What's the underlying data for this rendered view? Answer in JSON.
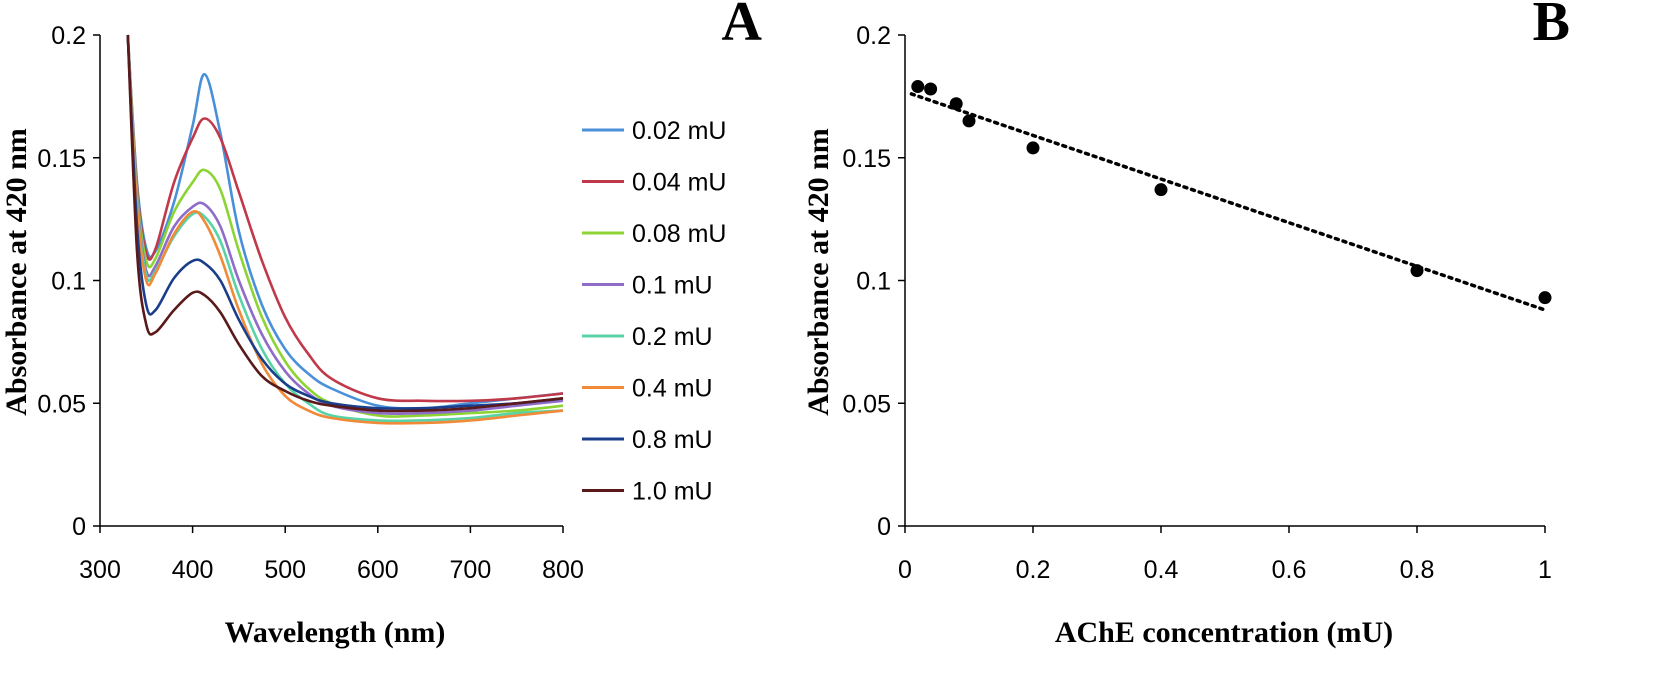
{
  "chart_data": [
    {
      "panel_label": "A",
      "type": "line",
      "xlabel": "Wavelength (nm)",
      "ylabel": "Absorbance at 420 nm",
      "xlim": [
        300,
        800
      ],
      "ylim": [
        0,
        0.2
      ],
      "x_ticks": [
        "300",
        "400",
        "500",
        "600",
        "700",
        "800"
      ],
      "y_ticks": [
        "0",
        "0.05",
        "0.1",
        "0.15",
        "0.2"
      ],
      "grid": false,
      "legend_position": "right",
      "x": [
        330,
        340,
        350,
        360,
        380,
        400,
        413,
        430,
        450,
        475,
        500,
        525,
        550,
        600,
        650,
        700,
        750,
        800
      ],
      "series": [
        {
          "name": "0.02 mU",
          "color": "#4a90d9",
          "values": [
            0.2,
            0.14,
            0.113,
            0.112,
            0.132,
            0.163,
            0.184,
            0.16,
            0.12,
            0.09,
            0.072,
            0.062,
            0.056,
            0.049,
            0.048,
            0.05,
            0.052,
            0.054
          ]
        },
        {
          "name": "0.04 mU",
          "color": "#c0394a",
          "values": [
            0.2,
            0.138,
            0.111,
            0.113,
            0.14,
            0.158,
            0.166,
            0.158,
            0.136,
            0.108,
            0.085,
            0.07,
            0.06,
            0.052,
            0.051,
            0.051,
            0.052,
            0.054
          ]
        },
        {
          "name": "0.08 mU",
          "color": "#8cd434",
          "values": [
            0.2,
            0.136,
            0.108,
            0.109,
            0.128,
            0.14,
            0.145,
            0.137,
            0.112,
            0.085,
            0.067,
            0.056,
            0.05,
            0.045,
            0.045,
            0.046,
            0.047,
            0.049
          ]
        },
        {
          "name": "0.1 mU",
          "color": "#8e6cc8",
          "values": [
            0.2,
            0.134,
            0.104,
            0.106,
            0.122,
            0.13,
            0.131,
            0.122,
            0.1,
            0.078,
            0.063,
            0.054,
            0.049,
            0.046,
            0.046,
            0.047,
            0.049,
            0.051
          ]
        },
        {
          "name": "0.2 mU",
          "color": "#58d3a6",
          "values": [
            0.2,
            0.132,
            0.102,
            0.104,
            0.118,
            0.127,
            0.126,
            0.116,
            0.094,
            0.072,
            0.058,
            0.05,
            0.045,
            0.043,
            0.043,
            0.044,
            0.046,
            0.047
          ]
        },
        {
          "name": "0.4 mU",
          "color": "#f08a38",
          "values": [
            0.2,
            0.13,
            0.1,
            0.103,
            0.119,
            0.128,
            0.124,
            0.11,
            0.088,
            0.066,
            0.053,
            0.047,
            0.044,
            0.042,
            0.042,
            0.043,
            0.045,
            0.047
          ]
        },
        {
          "name": "0.8 mU",
          "color": "#1a3e8c",
          "values": [
            0.2,
            0.122,
            0.09,
            0.088,
            0.101,
            0.108,
            0.107,
            0.1,
            0.084,
            0.068,
            0.058,
            0.053,
            0.05,
            0.048,
            0.048,
            0.049,
            0.05,
            0.052
          ]
        },
        {
          "name": "1.0 mU",
          "color": "#5a1a1a",
          "values": [
            0.2,
            0.112,
            0.082,
            0.079,
            0.088,
            0.095,
            0.094,
            0.087,
            0.074,
            0.061,
            0.055,
            0.051,
            0.049,
            0.047,
            0.047,
            0.048,
            0.05,
            0.052
          ]
        }
      ]
    },
    {
      "panel_label": "B",
      "type": "scatter",
      "xlabel": "AChE concentration (mU)",
      "ylabel": "Absorbance at 420 nm",
      "xlim": [
        0,
        1
      ],
      "ylim": [
        0,
        0.2
      ],
      "x_ticks": [
        "0",
        "0.2",
        "0.4",
        "0.6",
        "0.8",
        "1"
      ],
      "y_ticks": [
        "0",
        "0.05",
        "0.1",
        "0.15",
        "0.2"
      ],
      "grid": false,
      "x": [
        0.02,
        0.04,
        0.08,
        0.1,
        0.2,
        0.4,
        0.8,
        1.0
      ],
      "values": [
        0.179,
        0.178,
        0.172,
        0.165,
        0.154,
        0.137,
        0.104,
        0.093
      ],
      "point_color": "#000000",
      "trendline": {
        "style": "dotted",
        "x": [
          0.01,
          1.0
        ],
        "y": [
          0.176,
          0.088
        ]
      }
    }
  ]
}
